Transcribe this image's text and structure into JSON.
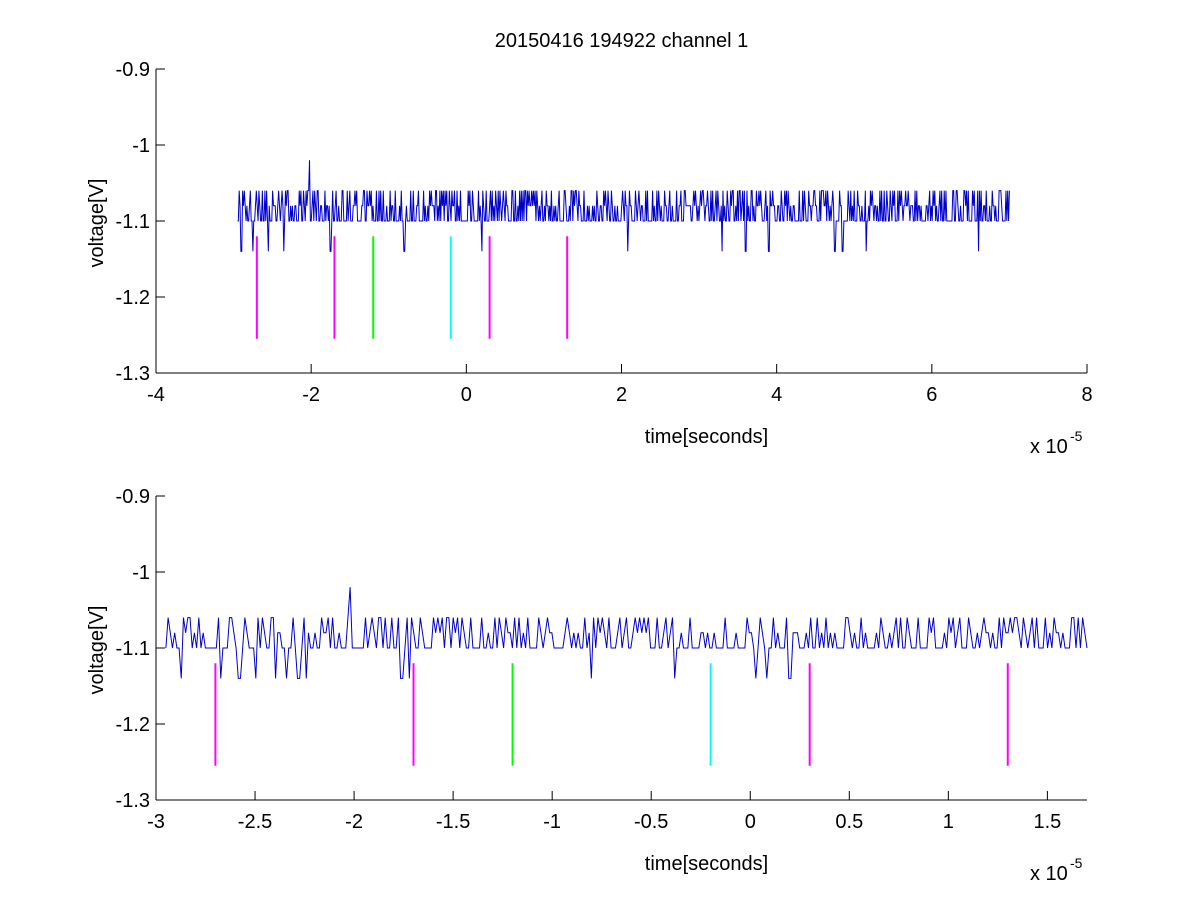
{
  "chart_data": [
    {
      "type": "line",
      "title": "20150416 194922 channel 1",
      "xlabel": "time[seconds]",
      "ylabel": "voltage[V]",
      "x_multiplier": "x 10",
      "x_multiplier_exponent": "-5",
      "xlim": [
        -4e-05,
        8e-05
      ],
      "ylim": [
        -1.3,
        -0.9
      ],
      "x_ticks": [
        -4e-05,
        -2e-05,
        0,
        2e-05,
        4e-05,
        6e-05,
        8e-05
      ],
      "x_tick_labels": [
        "-4",
        "-2",
        "0",
        "2",
        "4",
        "6",
        "8"
      ],
      "y_ticks": [
        -1.3,
        -1.2,
        -1.1,
        -1.0,
        -0.9
      ],
      "y_tick_labels": [
        "-1.3",
        "-1.2",
        "-1.1",
        "-1",
        "-0.9"
      ],
      "grid": false,
      "series": [
        {
          "color": "#0000cc",
          "style": "noisy signal",
          "x_range": [
            -2.95e-05,
            7e-05
          ],
          "baseline": -1.1,
          "levels": [
            -1.14,
            -1.12,
            -1.1,
            -1.08,
            -1.06
          ],
          "spike": {
            "x": -2.02e-05,
            "y": -1.02
          },
          "dips": [
            {
              "x": -2.9e-05,
              "y": -1.14
            },
            {
              "x": -2.75e-05,
              "y": -1.14
            },
            {
              "x": -2.55e-05,
              "y": -1.14
            },
            {
              "x": -2.35e-05,
              "y": -1.14
            },
            {
              "x": -1.75e-05,
              "y": -1.14
            },
            {
              "x": -8e-06,
              "y": -1.14
            },
            {
              "x": 2e-06,
              "y": -1.14
            },
            {
              "x": 2.08e-05,
              "y": -1.14
            },
            {
              "x": 3.3e-05,
              "y": -1.14
            },
            {
              "x": 3.6e-05,
              "y": -1.14
            },
            {
              "x": 3.9e-05,
              "y": -1.14
            },
            {
              "x": 4.75e-05,
              "y": -1.14
            },
            {
              "x": 4.85e-05,
              "y": -1.14
            },
            {
              "x": 5.15e-05,
              "y": -1.14
            },
            {
              "x": 6.6e-05,
              "y": -1.14
            }
          ]
        }
      ],
      "markers": [
        {
          "x": -2.7e-05,
          "color": "#ff00ff",
          "y_top": -1.12,
          "y_bottom": -1.255
        },
        {
          "x": -1.7e-05,
          "color": "#ff00ff",
          "y_top": -1.12,
          "y_bottom": -1.255
        },
        {
          "x": -1.2e-05,
          "color": "#00ff00",
          "y_top": -1.12,
          "y_bottom": -1.255
        },
        {
          "x": -2e-06,
          "color": "#00ffff",
          "y_top": -1.12,
          "y_bottom": -1.255
        },
        {
          "x": 3e-06,
          "color": "#ff00ff",
          "y_top": -1.12,
          "y_bottom": -1.255
        },
        {
          "x": 1.3e-05,
          "color": "#ff00ff",
          "y_top": -1.12,
          "y_bottom": -1.255
        }
      ]
    },
    {
      "type": "line",
      "title": "",
      "xlabel": "time[seconds]",
      "ylabel": "voltage[V]",
      "x_multiplier": "x 10",
      "x_multiplier_exponent": "-5",
      "xlim": [
        -3e-05,
        1.7e-05
      ],
      "ylim": [
        -1.3,
        -0.9
      ],
      "x_ticks": [
        -3e-05,
        -2.5e-05,
        -2e-05,
        -1.5e-05,
        -1e-05,
        -5e-06,
        0,
        5e-06,
        1e-05,
        1.5e-05
      ],
      "x_tick_labels": [
        "-3",
        "-2.5",
        "-2",
        "-1.5",
        "-1",
        "-0.5",
        "0",
        "0.5",
        "1",
        "1.5"
      ],
      "y_ticks": [
        -1.3,
        -1.2,
        -1.1,
        -1.0,
        -0.9
      ],
      "y_tick_labels": [
        "-1.3",
        "-1.2",
        "-1.1",
        "-1",
        "-0.9"
      ],
      "grid": false,
      "series": [
        {
          "color": "#0000cc",
          "style": "noisy signal",
          "x_range": [
            -2.95e-05,
            1.7e-05
          ],
          "baseline": -1.1,
          "levels": [
            -1.14,
            -1.12,
            -1.1,
            -1.08,
            -1.06
          ],
          "spike": {
            "x": -2.02e-05,
            "y": -1.02
          },
          "dips": [
            {
              "x": -2.87e-05,
              "y": -1.14
            },
            {
              "x": -2.67e-05,
              "y": -1.14
            },
            {
              "x": -2.58e-05,
              "y": -1.14
            },
            {
              "x": -2.5e-05,
              "y": -1.14
            },
            {
              "x": -2.4e-05,
              "y": -1.14
            },
            {
              "x": -2.34e-05,
              "y": -1.14
            },
            {
              "x": -2.28e-05,
              "y": -1.14
            },
            {
              "x": -2.24e-05,
              "y": -1.14
            },
            {
              "x": -1.76e-05,
              "y": -1.14
            },
            {
              "x": -1.72e-05,
              "y": -1.14
            },
            {
              "x": -8e-06,
              "y": -1.14
            },
            {
              "x": -3.8e-06,
              "y": -1.14
            },
            {
              "x": 3e-07,
              "y": -1.14
            },
            {
              "x": 8e-07,
              "y": -1.14
            },
            {
              "x": 2e-06,
              "y": -1.14
            }
          ]
        }
      ],
      "markers": [
        {
          "x": -2.7e-05,
          "color": "#ff00ff",
          "y_top": -1.12,
          "y_bottom": -1.255
        },
        {
          "x": -1.7e-05,
          "color": "#ff00ff",
          "y_top": -1.12,
          "y_bottom": -1.255
        },
        {
          "x": -1.2e-05,
          "color": "#00ff00",
          "y_top": -1.12,
          "y_bottom": -1.255
        },
        {
          "x": -2e-06,
          "color": "#00ffff",
          "y_top": -1.12,
          "y_bottom": -1.255
        },
        {
          "x": 3e-06,
          "color": "#ff00ff",
          "y_top": -1.12,
          "y_bottom": -1.255
        },
        {
          "x": 1.3e-05,
          "color": "#ff00ff",
          "y_top": -1.12,
          "y_bottom": -1.255
        }
      ]
    }
  ]
}
